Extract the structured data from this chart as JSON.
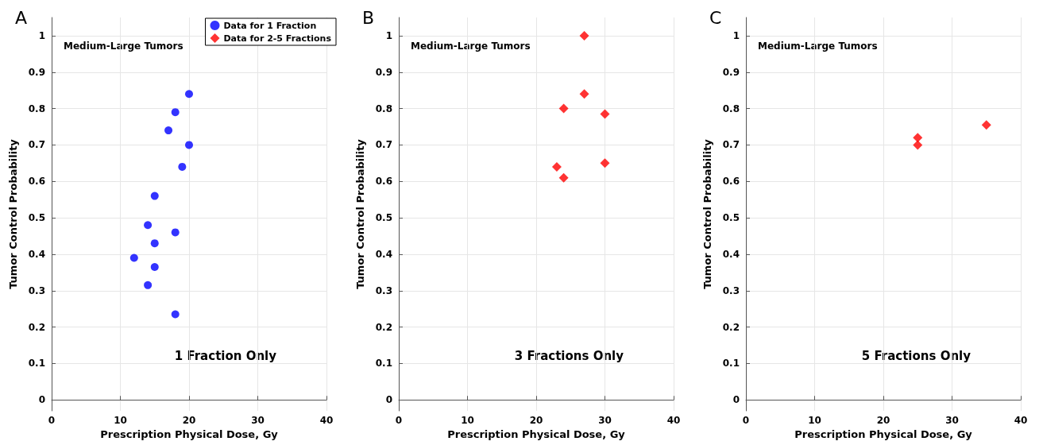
{
  "chart_data": [
    {
      "type": "scatter",
      "title": "A",
      "xlabel": "Prescription Physical Dose, Gy",
      "ylabel": "Tumor Control Probability",
      "annotations": [
        "Medium-Large Tumors",
        "1 Fraction Only"
      ],
      "xlim": [
        0,
        40
      ],
      "xticks": [
        0,
        10,
        20,
        30,
        40
      ],
      "ylim": [
        -0.03,
        1.05
      ],
      "yticks": [
        0,
        0.1,
        0.2,
        0.3,
        0.4,
        0.5,
        0.6,
        0.7,
        0.8,
        0.9,
        1
      ],
      "grid": true,
      "legend": "top right",
      "marker": "circle",
      "series": [
        {
          "name": "Data for 1 Fraction",
          "color": "#0000ff",
          "x": [
            20,
            18,
            17,
            20,
            19,
            15,
            14,
            18,
            15,
            12,
            15,
            14,
            18
          ],
          "values": [
            0.84,
            0.79,
            0.74,
            0.7,
            0.64,
            0.56,
            0.48,
            0.46,
            0.43,
            0.39,
            0.365,
            0.315,
            0.235
          ]
        },
        {
          "name": "Data for 2-5 Fractions",
          "color": "#ff0000",
          "marker": "diamond"
        }
      ]
    },
    {
      "type": "scatter",
      "title": "B",
      "xlabel": "Prescription Physical Dose, Gy",
      "ylabel": "Tumor Control Probability",
      "annotations": [
        "Medium-Large Tumors",
        "3 Fractions Only"
      ],
      "xlim": [
        0,
        40
      ],
      "xticks": [
        0,
        10,
        20,
        30,
        40
      ],
      "ylim": [
        -0.03,
        1.05
      ],
      "yticks": [
        0,
        0.1,
        0.2,
        0.3,
        0.4,
        0.5,
        0.6,
        0.7,
        0.8,
        0.9,
        1
      ],
      "grid": true,
      "marker": "diamond",
      "series": [
        {
          "color": "#ff0000",
          "x": [
            27,
            27,
            24,
            30,
            23,
            24,
            30
          ],
          "values": [
            1.0,
            0.84,
            0.8,
            0.785,
            0.64,
            0.61,
            0.65
          ]
        }
      ]
    },
    {
      "type": "scatter",
      "title": "C",
      "xlabel": "Prescription Physical Dose, Gy",
      "ylabel": "Tumor Control Probability",
      "annotations": [
        "Medium-Large Tumors",
        "5 Fractions Only"
      ],
      "xlim": [
        0,
        40
      ],
      "xticks": [
        0,
        10,
        20,
        30,
        40
      ],
      "ylim": [
        -0.03,
        1.05
      ],
      "yticks": [
        0,
        0.1,
        0.2,
        0.3,
        0.4,
        0.5,
        0.6,
        0.7,
        0.8,
        0.9,
        1
      ],
      "grid": true,
      "marker": "diamond",
      "series": [
        {
          "color": "#ff0000",
          "x": [
            25,
            25,
            35
          ],
          "values": [
            0.72,
            0.7,
            0.755
          ]
        }
      ]
    }
  ]
}
